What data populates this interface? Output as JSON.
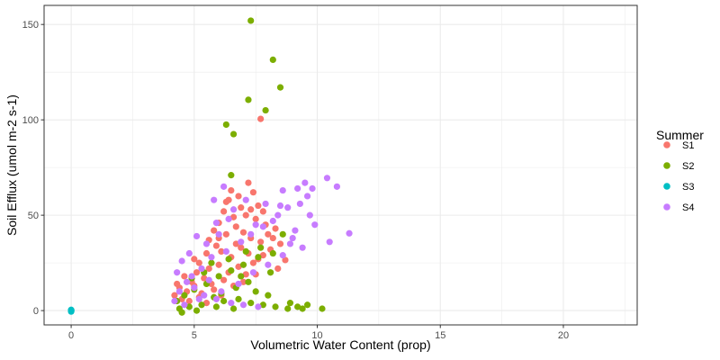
{
  "chart_data": {
    "type": "scatter",
    "title": "",
    "xlabel": "Volumetric Water Content (prop)",
    "ylabel": "Soil Efflux (umol m-2 s-1)",
    "xlim": [
      -1.1,
      23
    ],
    "ylim": [
      -7.5,
      160
    ],
    "xticks": [
      0,
      5,
      10,
      15,
      20
    ],
    "yticks": [
      0,
      50,
      100,
      150
    ],
    "grid": true,
    "legend": {
      "title": "Summer",
      "position": "right"
    },
    "series": [
      {
        "name": "S1",
        "color": "#F8766D",
        "points": [
          [
            7.7,
            100.5
          ],
          [
            8.7,
            26.5
          ],
          [
            6.5,
            63
          ],
          [
            6.8,
            60
          ],
          [
            7.2,
            67
          ],
          [
            7.4,
            62
          ],
          [
            7.6,
            55
          ],
          [
            7.8,
            52
          ],
          [
            6.4,
            58
          ],
          [
            6.9,
            54
          ],
          [
            7.1,
            50
          ],
          [
            7.5,
            48
          ],
          [
            6.2,
            52
          ],
          [
            6.0,
            46
          ],
          [
            6.6,
            49
          ],
          [
            7.9,
            45
          ],
          [
            8.0,
            40
          ],
          [
            8.2,
            38
          ],
          [
            8.5,
            35
          ],
          [
            8.3,
            43
          ],
          [
            5.8,
            42
          ],
          [
            6.3,
            40
          ],
          [
            6.7,
            44
          ],
          [
            7.0,
            41
          ],
          [
            7.3,
            38
          ],
          [
            7.7,
            36
          ],
          [
            5.5,
            30
          ],
          [
            5.9,
            34
          ],
          [
            6.1,
            31
          ],
          [
            6.5,
            28
          ],
          [
            6.9,
            33
          ],
          [
            7.2,
            30
          ],
          [
            7.6,
            27
          ],
          [
            8.1,
            32
          ],
          [
            5.2,
            25
          ],
          [
            5.6,
            22
          ],
          [
            6.0,
            24
          ],
          [
            6.4,
            20
          ],
          [
            6.8,
            23
          ],
          [
            7.1,
            19
          ],
          [
            7.4,
            25
          ],
          [
            4.6,
            18
          ],
          [
            4.9,
            15
          ],
          [
            5.1,
            20
          ],
          [
            5.4,
            17
          ],
          [
            5.7,
            14
          ],
          [
            6.2,
            16
          ],
          [
            6.6,
            13
          ],
          [
            7.0,
            15
          ],
          [
            4.4,
            12
          ],
          [
            4.7,
            10
          ],
          [
            5.0,
            13
          ],
          [
            5.3,
            9
          ],
          [
            5.8,
            11
          ],
          [
            6.1,
            8
          ],
          [
            4.5,
            6
          ],
          [
            4.8,
            5
          ],
          [
            5.2,
            7
          ],
          [
            5.5,
            4
          ],
          [
            4.3,
            14
          ],
          [
            6.3,
            57
          ],
          [
            7.3,
            53
          ],
          [
            5.6,
            37
          ],
          [
            6.0,
            38
          ],
          [
            7.8,
            29
          ],
          [
            8.4,
            22
          ],
          [
            7.5,
            19
          ],
          [
            5.0,
            27
          ],
          [
            4.2,
            8
          ],
          [
            6.7,
            35
          ]
        ]
      },
      {
        "name": "S2",
        "color": "#7CAE00",
        "points": [
          [
            7.3,
            152
          ],
          [
            8.2,
            131.5
          ],
          [
            8.5,
            117
          ],
          [
            7.9,
            105
          ],
          [
            7.2,
            110.5
          ],
          [
            6.3,
            97.5
          ],
          [
            6.6,
            92.5
          ],
          [
            6.5,
            71
          ],
          [
            8.6,
            40
          ],
          [
            8.2,
            30
          ],
          [
            7.6,
            28
          ],
          [
            7.0,
            24
          ],
          [
            6.5,
            21
          ],
          [
            6.0,
            18
          ],
          [
            5.5,
            14
          ],
          [
            5.0,
            11
          ],
          [
            4.6,
            8
          ],
          [
            4.3,
            5
          ],
          [
            5.8,
            7
          ],
          [
            6.2,
            5
          ],
          [
            6.8,
            6
          ],
          [
            7.3,
            4
          ],
          [
            7.8,
            3
          ],
          [
            8.3,
            2
          ],
          [
            8.8,
            1
          ],
          [
            9.2,
            2
          ],
          [
            9.6,
            3
          ],
          [
            10.2,
            1
          ],
          [
            4.8,
            2
          ],
          [
            5.3,
            3
          ],
          [
            4.5,
            -1
          ],
          [
            5.1,
            0
          ],
          [
            6.1,
            9
          ],
          [
            6.7,
            12
          ],
          [
            7.2,
            15
          ],
          [
            7.5,
            10
          ],
          [
            8.0,
            8
          ],
          [
            5.7,
            25
          ],
          [
            6.4,
            27
          ],
          [
            7.1,
            31
          ],
          [
            7.7,
            33
          ],
          [
            8.1,
            20
          ],
          [
            4.9,
            17
          ],
          [
            5.4,
            20
          ],
          [
            6.9,
            18
          ],
          [
            8.9,
            4
          ],
          [
            9.4,
            1
          ],
          [
            4.4,
            1
          ],
          [
            5.9,
            2
          ],
          [
            6.6,
            1
          ]
        ]
      },
      {
        "name": "S3",
        "color": "#00BFC4",
        "points": [
          [
            0,
            0
          ],
          [
            0,
            -0.5
          ],
          [
            0,
            0.4
          ],
          [
            0,
            0.2
          ],
          [
            0,
            -0.2
          ]
        ]
      },
      {
        "name": "S4",
        "color": "#C77CFF",
        "points": [
          [
            11.3,
            40.5
          ],
          [
            10.4,
            69.5
          ],
          [
            10.8,
            65
          ],
          [
            9.8,
            64
          ],
          [
            9.2,
            64
          ],
          [
            9.5,
            67
          ],
          [
            8.6,
            63
          ],
          [
            8.8,
            54
          ],
          [
            9.3,
            56
          ],
          [
            9.6,
            60
          ],
          [
            9.9,
            45
          ],
          [
            10.5,
            36
          ],
          [
            9.4,
            33
          ],
          [
            9.0,
            38
          ],
          [
            8.4,
            50
          ],
          [
            7.9,
            56
          ],
          [
            7.5,
            45
          ],
          [
            6.2,
            65
          ],
          [
            5.8,
            58
          ],
          [
            6.0,
            40
          ],
          [
            5.5,
            35
          ],
          [
            5.1,
            39
          ],
          [
            4.8,
            30
          ],
          [
            4.5,
            26
          ],
          [
            4.3,
            20
          ],
          [
            4.7,
            15
          ],
          [
            5.0,
            12
          ],
          [
            5.4,
            8
          ],
          [
            5.9,
            6
          ],
          [
            6.5,
            4
          ],
          [
            7.0,
            3
          ],
          [
            7.6,
            2
          ],
          [
            4.2,
            5
          ],
          [
            4.4,
            10
          ],
          [
            4.9,
            18
          ],
          [
            5.3,
            22
          ],
          [
            5.7,
            28
          ],
          [
            6.3,
            31
          ],
          [
            6.9,
            36
          ],
          [
            7.3,
            40
          ],
          [
            7.8,
            44
          ],
          [
            8.2,
            47
          ],
          [
            8.6,
            29
          ],
          [
            8.0,
            24
          ],
          [
            7.4,
            20
          ],
          [
            6.8,
            14
          ],
          [
            6.1,
            10
          ],
          [
            5.6,
            16
          ],
          [
            5.2,
            6
          ],
          [
            4.6,
            3
          ],
          [
            8.5,
            55
          ],
          [
            9.1,
            42
          ],
          [
            6.4,
            48
          ],
          [
            6.6,
            53
          ],
          [
            7.1,
            58
          ],
          [
            5.9,
            46
          ],
          [
            8.9,
            35
          ],
          [
            9.7,
            50
          ]
        ]
      }
    ]
  }
}
